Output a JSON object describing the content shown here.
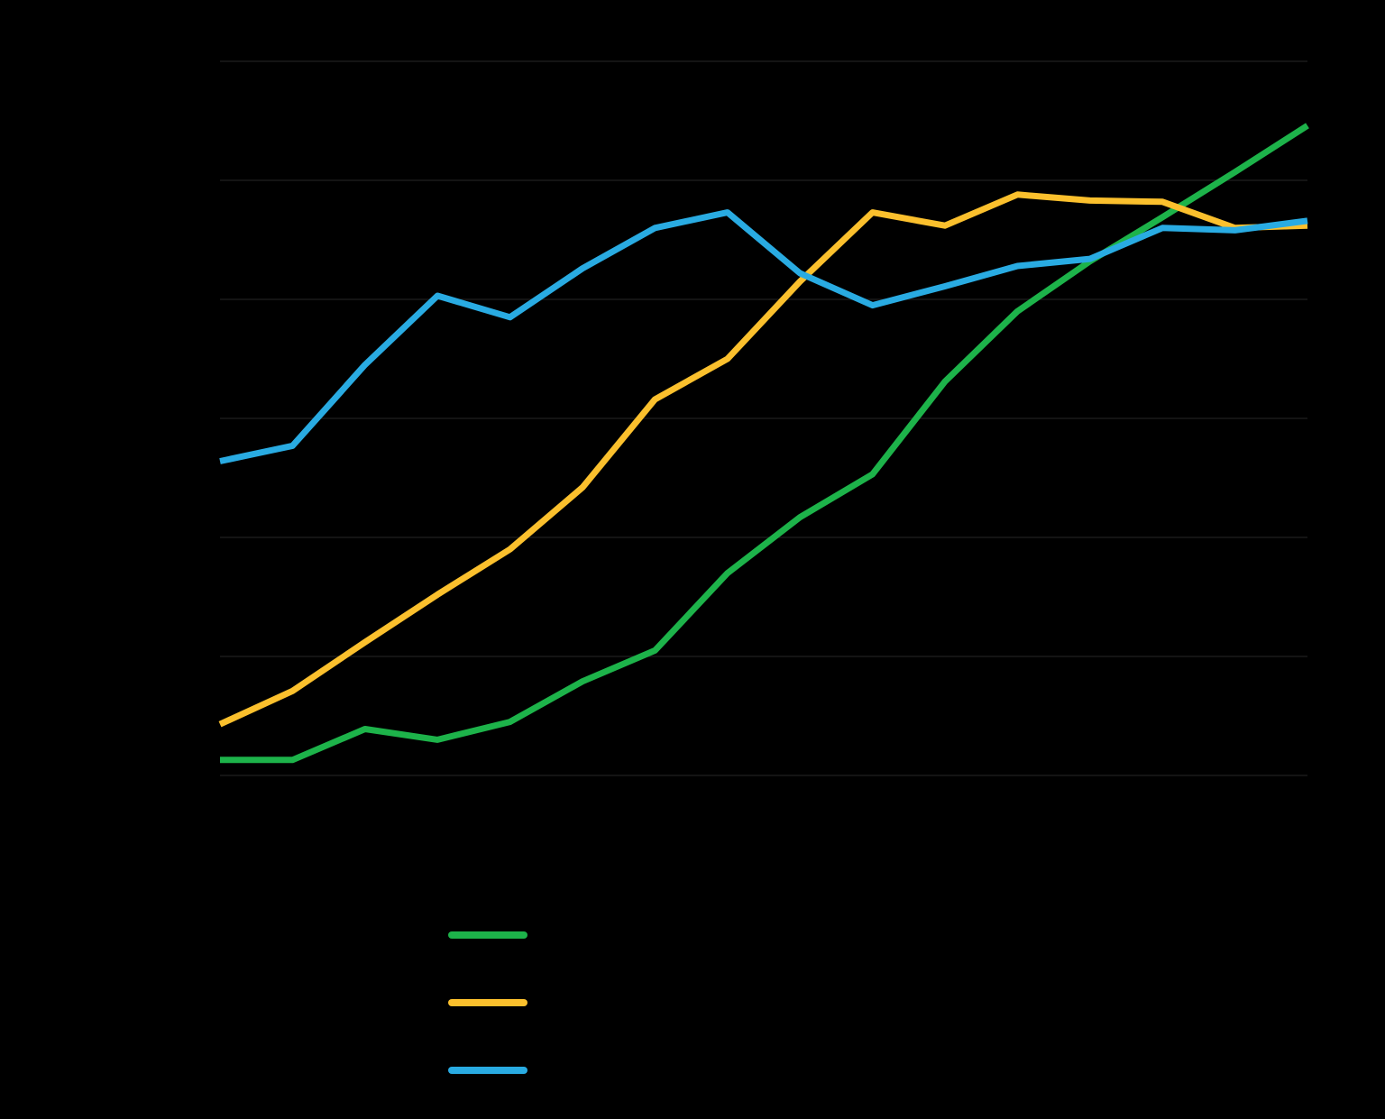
{
  "chart_data": {
    "type": "line",
    "title": "",
    "xlabel": "",
    "ylabel": "",
    "x": [
      1,
      2,
      3,
      4,
      5,
      6,
      7,
      8,
      9,
      10,
      11,
      12,
      13,
      14,
      15,
      16
    ],
    "ylim": [
      0,
      6
    ],
    "grid": true,
    "legend_position": "bottom",
    "series": [
      {
        "color": "#1db34a",
        "values": [
          0.13,
          0.13,
          0.39,
          0.3,
          0.45,
          0.79,
          1.05,
          1.7,
          2.17,
          2.53,
          3.31,
          3.9,
          4.32,
          4.69,
          5.07,
          5.46
        ]
      },
      {
        "color": "#fbc02d",
        "values": [
          0.43,
          0.71,
          1.12,
          1.52,
          1.9,
          2.42,
          3.16,
          3.5,
          4.15,
          4.73,
          4.62,
          4.88,
          4.83,
          4.82,
          4.6,
          4.62
        ]
      },
      {
        "color": "#29abe2",
        "values": [
          2.64,
          2.77,
          3.45,
          4.03,
          3.85,
          4.26,
          4.6,
          4.73,
          4.22,
          3.95,
          4.11,
          4.28,
          4.34,
          4.6,
          4.58,
          4.66
        ]
      }
    ]
  },
  "colors": {
    "background": "#000000",
    "grid": "#1a1a1a"
  }
}
